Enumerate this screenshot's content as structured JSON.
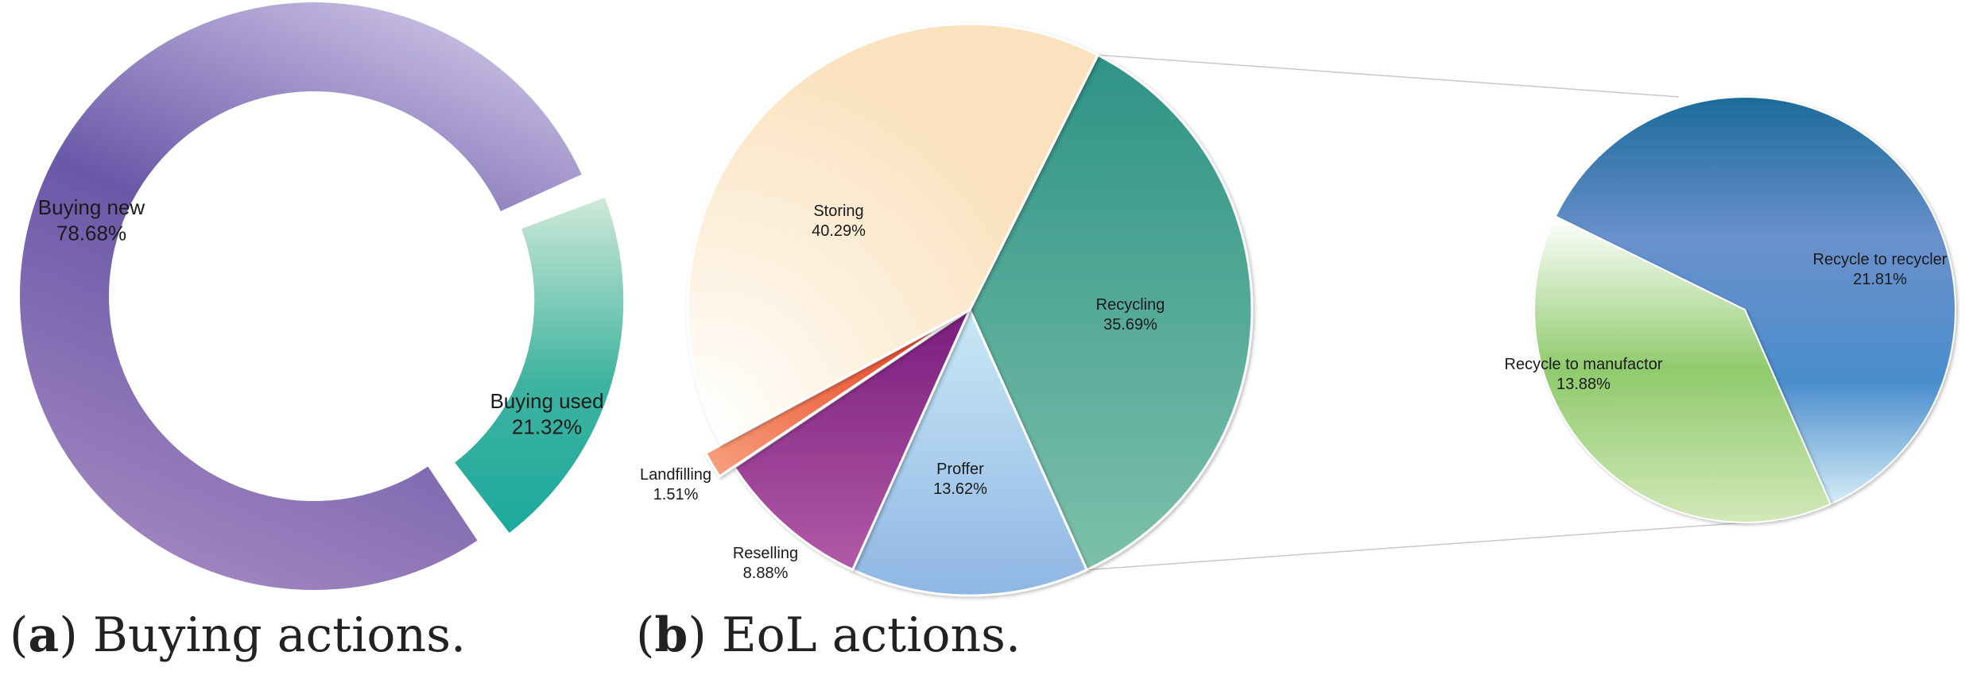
{
  "chart_data": [
    {
      "type": "pie",
      "variant": "donut",
      "caption_letter": "a",
      "caption_text": " Buying actions.",
      "slices": [
        {
          "label": "Buying new",
          "value": 78.68,
          "value_text": "78.68%",
          "color": "#8e79bd"
        },
        {
          "label": "Buying used",
          "value": 21.32,
          "value_text": "21.32%",
          "color": "#3fb3a0"
        }
      ]
    },
    {
      "type": "pie",
      "variant": "pie-of-pie",
      "caption_letter": "b",
      "caption_text": " EoL actions.",
      "slices": [
        {
          "label": "Storing",
          "value": 40.29,
          "value_text": "40.29%",
          "color": "#fbe5c4"
        },
        {
          "label": "Recycling",
          "value": 35.69,
          "value_text": "35.69%",
          "color": "#4ea596"
        },
        {
          "label": "Proffer",
          "value": 13.62,
          "value_text": "13.62%",
          "color": "#aed5ee"
        },
        {
          "label": "Reselling",
          "value": 8.88,
          "value_text": "8.88%",
          "color": "#9b3a9d"
        },
        {
          "label": "Landfilling",
          "value": 1.51,
          "value_text": "1.51%",
          "color": "#ee5a34"
        }
      ],
      "breakout_of": "Recycling",
      "breakout": [
        {
          "label": "Recycle to recycler",
          "value": 21.81,
          "value_text": "21.81%",
          "color": "#4c84c4"
        },
        {
          "label": "Recycle to manufactor",
          "value": 13.88,
          "value_text": "13.88%",
          "color": "#99cd78"
        }
      ]
    }
  ]
}
